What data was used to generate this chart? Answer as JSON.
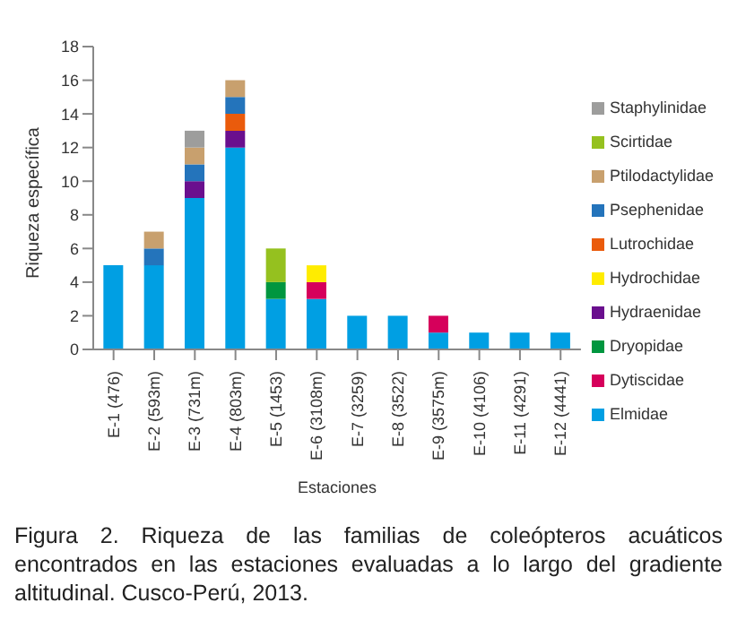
{
  "chart_data": {
    "type": "bar",
    "stacked": true,
    "xlabel": "Estaciones",
    "ylabel": "Riqueza específica",
    "categories": [
      "E-1 (476)",
      "E-2 (593m)",
      "E-3 (731m)",
      "E-4 (803m)",
      "E-5 (1453)",
      "E-6 (3108m)",
      "E-7 (3259)",
      "E-8 (3522)",
      "E-9 (3575m)",
      "E-10 (4106)",
      "E-11 (4291)",
      "E-12 (4441)"
    ],
    "series": [
      {
        "name": "Elmidae",
        "color": "#009fe3",
        "values": [
          5,
          5,
          9,
          12,
          3,
          3,
          2,
          2,
          1,
          1,
          1,
          1
        ]
      },
      {
        "name": "Dytiscidae",
        "color": "#d6005b",
        "values": [
          0,
          0,
          0,
          0,
          0,
          1,
          0,
          0,
          1,
          0,
          0,
          0
        ]
      },
      {
        "name": "Dryopidae",
        "color": "#00963f",
        "values": [
          0,
          0,
          0,
          0,
          1,
          0,
          0,
          0,
          0,
          0,
          0,
          0
        ]
      },
      {
        "name": "Hydraenidae",
        "color": "#6a0f8e",
        "values": [
          0,
          0,
          1,
          1,
          0,
          0,
          0,
          0,
          0,
          0,
          0,
          0
        ]
      },
      {
        "name": "Hydrochidae",
        "color": "#ffec00",
        "values": [
          0,
          0,
          0,
          0,
          0,
          1,
          0,
          0,
          0,
          0,
          0,
          0
        ]
      },
      {
        "name": "Lutrochidae",
        "color": "#ea5b0c",
        "values": [
          0,
          0,
          0,
          1,
          0,
          0,
          0,
          0,
          0,
          0,
          0,
          0
        ]
      },
      {
        "name": "Psephenidae",
        "color": "#2474bb",
        "values": [
          0,
          1,
          1,
          1,
          0,
          0,
          0,
          0,
          0,
          0,
          0,
          0
        ]
      },
      {
        "name": "Ptilodactylidae",
        "color": "#c8a06e",
        "values": [
          0,
          1,
          1,
          1,
          0,
          0,
          0,
          0,
          0,
          0,
          0,
          0
        ]
      },
      {
        "name": "Scirtidae",
        "color": "#95c11f",
        "values": [
          0,
          0,
          0,
          0,
          2,
          0,
          0,
          0,
          0,
          0,
          0,
          0
        ]
      },
      {
        "name": "Staphylinidae",
        "color": "#9d9d9c",
        "values": [
          0,
          0,
          1,
          0,
          0,
          0,
          0,
          0,
          0,
          0,
          0,
          0
        ]
      }
    ],
    "ylim": [
      0,
      18
    ],
    "yticks": [
      0,
      2,
      4,
      6,
      8,
      10,
      12,
      14,
      16,
      18
    ],
    "grid": false,
    "legend": "right",
    "annotations": [
      "Figura 2. Riqueza de las familias de coleópteros acuáticos encontrados en las estaciones evaluadas a lo largo del gradiente altitudinal. Cusco-Perú, 2013."
    ]
  }
}
